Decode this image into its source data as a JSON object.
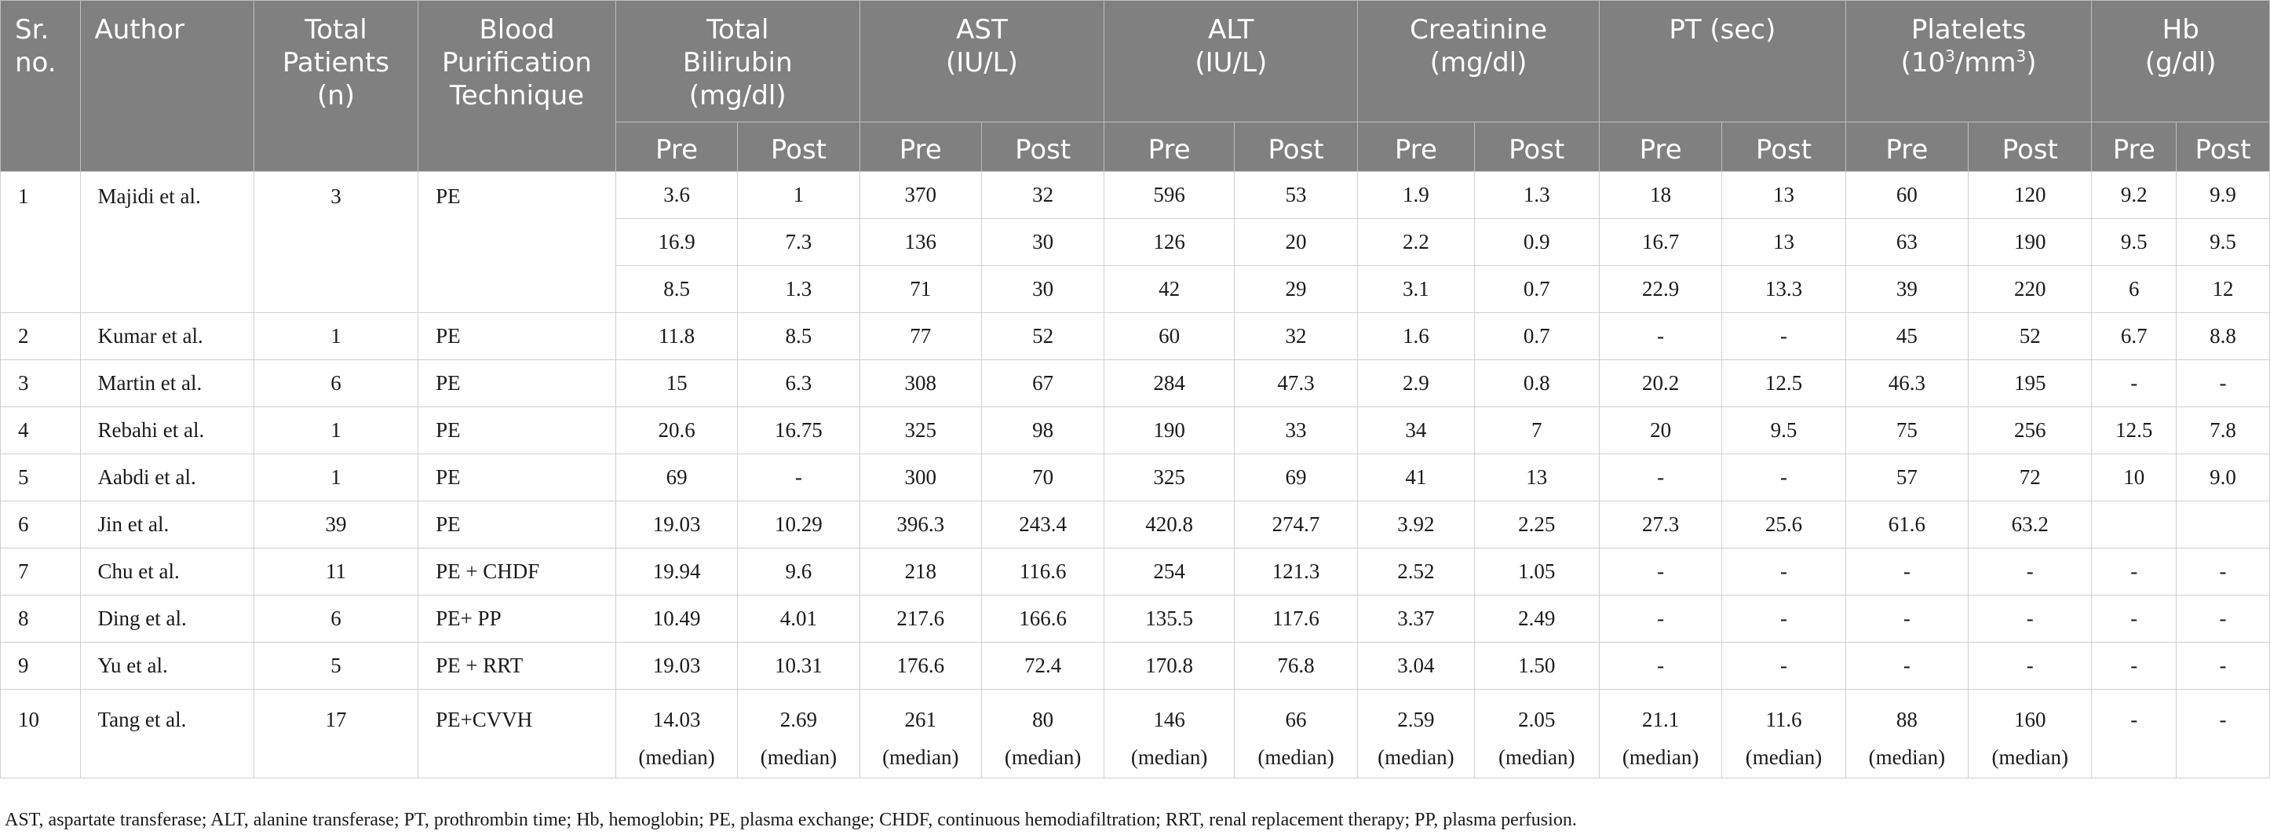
{
  "header": {
    "sr_line1": "Sr.",
    "sr_line2": "no.",
    "author": "Author",
    "patients_line1": "Total",
    "patients_line2": "Patients",
    "patients_line3": "(n)",
    "technique_line1": "Blood",
    "technique_line2": "Purification",
    "technique_line3": "Technique",
    "bili_line1": "Total",
    "bili_line2": "Bilirubin",
    "bili_line3": "(mg/dl)",
    "ast_line1": "AST",
    "ast_line2": "(IU/L)",
    "alt_line1": "ALT",
    "alt_line2": "(IU/L)",
    "creat_line1": "Creatinine",
    "creat_line2": "(mg/dl)",
    "pt": "PT (sec)",
    "plt_line1": "Platelets",
    "plt_unit_a": "(10",
    "plt_unit_sup": "3",
    "plt_unit_b": "/mm",
    "plt_unit_sup2": "3",
    "plt_unit_c": ")",
    "hb_line1": "Hb",
    "hb_line2": "(g/dl)",
    "pre": "Pre",
    "post": "Post"
  },
  "rows": [
    {
      "sr": "1",
      "author": "Majidi et al.",
      "n": "3",
      "tech": "PE",
      "sub": [
        [
          "3.6",
          "1",
          "370",
          "32",
          "596",
          "53",
          "1.9",
          "1.3",
          "18",
          "13",
          "60",
          "120",
          "9.2",
          "9.9"
        ],
        [
          "16.9",
          "7.3",
          "136",
          "30",
          "126",
          "20",
          "2.2",
          "0.9",
          "16.7",
          "13",
          "63",
          "190",
          "9.5",
          "9.5"
        ],
        [
          "8.5",
          "1.3",
          "71",
          "30",
          "42",
          "29",
          "3.1",
          "0.7",
          "22.9",
          "13.3",
          "39",
          "220",
          "6",
          "12"
        ]
      ]
    },
    {
      "sr": "2",
      "author": "Kumar et al.",
      "n": "1",
      "tech": "PE",
      "vals": [
        "11.8",
        "8.5",
        "77",
        "52",
        "60",
        "32",
        "1.6",
        "0.7",
        "-",
        "-",
        "45",
        "52",
        "6.7",
        "8.8"
      ]
    },
    {
      "sr": "3",
      "author": "Martin et al.",
      "n": "6",
      "tech": "PE",
      "vals": [
        "15",
        "6.3",
        "308",
        "67",
        "284",
        "47.3",
        "2.9",
        "0.8",
        "20.2",
        "12.5",
        "46.3",
        "195",
        "-",
        "-"
      ]
    },
    {
      "sr": "4",
      "author": "Rebahi et al.",
      "n": "1",
      "tech": "PE",
      "vals": [
        "20.6",
        "16.75",
        "325",
        "98",
        "190",
        "33",
        "34",
        "7",
        "20",
        "9.5",
        "75",
        "256",
        "12.5",
        "7.8"
      ]
    },
    {
      "sr": "5",
      "author": "Aabdi et al.",
      "n": "1",
      "tech": "PE",
      "vals": [
        "69",
        "-",
        "300",
        "70",
        "325",
        "69",
        "41",
        "13",
        "-",
        "-",
        "57",
        "72",
        "10",
        "9.0"
      ]
    },
    {
      "sr": "6",
      "author": "Jin et al.",
      "n": "39",
      "tech": "PE",
      "vals": [
        "19.03",
        "10.29",
        "396.3",
        "243.4",
        "420.8",
        "274.7",
        "3.92",
        "2.25",
        "27.3",
        "25.6",
        "61.6",
        "63.2",
        "",
        ""
      ]
    },
    {
      "sr": "7",
      "author": "Chu et al.",
      "n": "11",
      "tech": "PE + CHDF",
      "vals": [
        "19.94",
        "9.6",
        "218",
        "116.6",
        "254",
        "121.3",
        "2.52",
        "1.05",
        "-",
        "-",
        "-",
        "-",
        "-",
        "-"
      ]
    },
    {
      "sr": "8",
      "author": "Ding et al.",
      "n": "6",
      "tech": "PE+ PP",
      "vals": [
        "10.49",
        "4.01",
        "217.6",
        "166.6",
        "135.5",
        "117.6",
        "3.37",
        "2.49",
        "-",
        "-",
        "-",
        "-",
        "-",
        "-"
      ]
    },
    {
      "sr": "9",
      "author": "Yu et al.",
      "n": "5",
      "tech": "PE + RRT",
      "vals": [
        "19.03",
        "10.31",
        "176.6",
        "72.4",
        "170.8",
        "76.8",
        "3.04",
        "1.50",
        "-",
        "-",
        "-",
        "-",
        "-",
        "-"
      ]
    },
    {
      "sr": "10",
      "author": "Tang et al.",
      "n": "17",
      "tech": "PE+CVVH",
      "vals": [
        "14.03",
        "2.69",
        "261",
        "80",
        "146",
        "66",
        "2.59",
        "2.05",
        "21.1",
        "11.6",
        "88",
        "160",
        "-",
        "-"
      ],
      "median": "(median)"
    }
  ],
  "footnote": "AST, aspartate transferase; ALT, alanine transferase; PT, prothrombin time; Hb, hemoglobin; PE, plasma exchange; CHDF, continuous hemodiafiltration; RRT, renal replacement therapy; PP, plasma perfusion."
}
